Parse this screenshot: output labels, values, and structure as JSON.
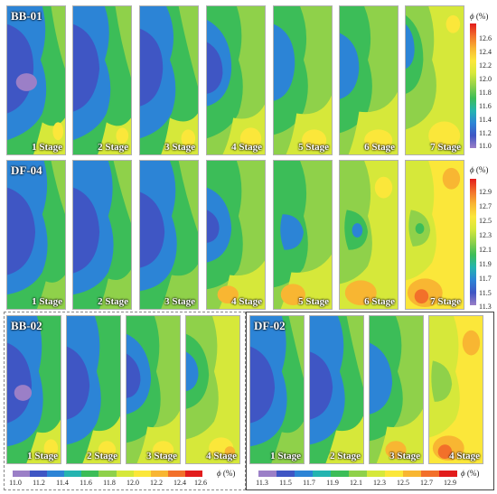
{
  "figure": {
    "colormap": [
      "#9b7fc7",
      "#3f56c4",
      "#2c84d6",
      "#24b4b0",
      "#3cbd58",
      "#8fd14a",
      "#d6e83a",
      "#fbe73a",
      "#f8b632",
      "#f2702a",
      "#e21c1c"
    ],
    "symbol": "ϕ",
    "unit": "(%)"
  },
  "rows": [
    {
      "sample": "BB-01",
      "stages": [
        "1 Stage",
        "2 Stage",
        "3 Stage",
        "4 Stage",
        "5 Stage",
        "6 Stage",
        "7 Stage"
      ],
      "colorbar_ticks": [
        "12.6",
        "12.4",
        "12.2",
        "12.0",
        "11.8",
        "11.6",
        "11.4",
        "11.2",
        "11.0"
      ]
    },
    {
      "sample": "DF-04",
      "stages": [
        "1 Stage",
        "2 Stage",
        "3 Stage",
        "4 Stage",
        "5 Stage",
        "6 Stage",
        "7 Stage"
      ],
      "colorbar_ticks": [
        "12.9",
        "12.7",
        "12.5",
        "12.3",
        "12.1",
        "11.9",
        "11.7",
        "11.5",
        "11.3"
      ]
    }
  ],
  "bottom": [
    {
      "sample": "BB-02",
      "stages": [
        "1 Stage",
        "2 Stage",
        "3 Stage",
        "4 Stage"
      ],
      "colorbar_ticks": [
        "11.0",
        "11.2",
        "11.4",
        "11.6",
        "11.8",
        "12.0",
        "12.2",
        "12.4",
        "12.6"
      ]
    },
    {
      "sample": "DF-02",
      "stages": [
        "1 Stage",
        "2 Stage",
        "3 Stage",
        "4 Stage"
      ],
      "colorbar_ticks": [
        "11.3",
        "11.5",
        "11.7",
        "11.9",
        "12.1",
        "12.3",
        "12.5",
        "12.7",
        "12.9"
      ]
    }
  ]
}
